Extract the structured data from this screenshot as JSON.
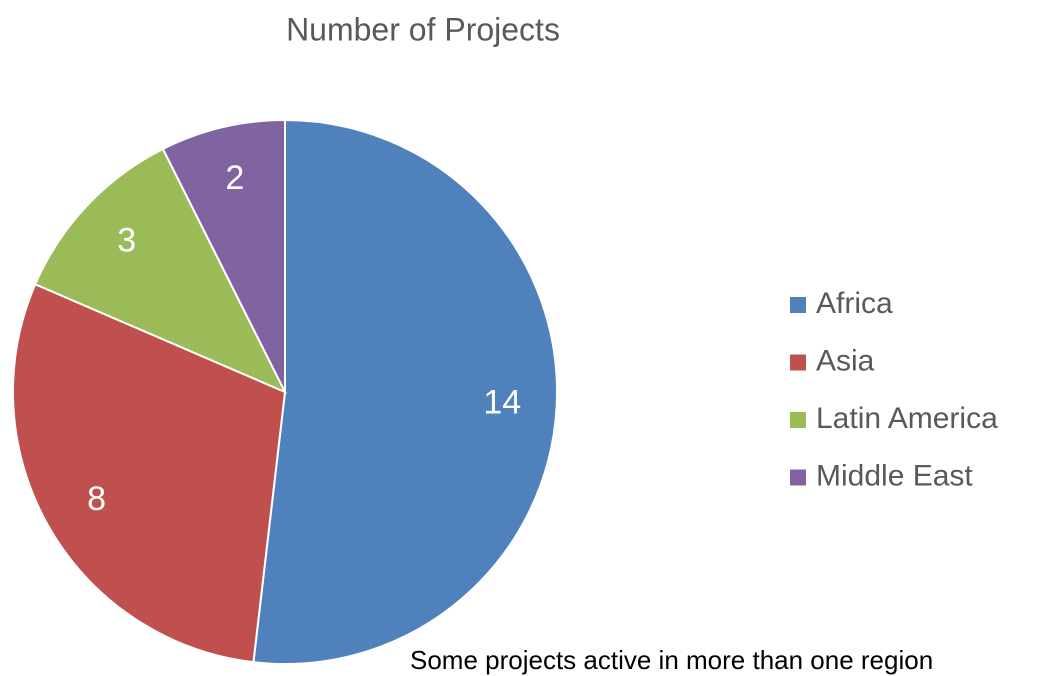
{
  "chart_data": {
    "type": "pie",
    "title": "Number of Projects",
    "categories": [
      "Africa",
      "Asia",
      "Latin America",
      "Middle East"
    ],
    "values": [
      14,
      8,
      3,
      2
    ],
    "colors": [
      "#4f81bd",
      "#c0504d",
      "#9bbb59",
      "#8064a2"
    ],
    "legend": "right",
    "annotation": "Some projects active in more than one region"
  }
}
